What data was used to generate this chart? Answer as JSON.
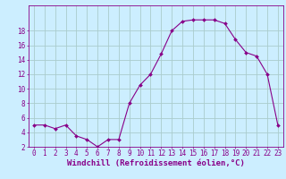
{
  "x": [
    0,
    1,
    2,
    3,
    4,
    5,
    6,
    7,
    8,
    9,
    10,
    11,
    12,
    13,
    14,
    15,
    16,
    17,
    18,
    19,
    20,
    21,
    22,
    23
  ],
  "y": [
    5,
    5,
    4.5,
    5,
    3.5,
    3,
    2,
    3,
    3,
    8,
    10.5,
    12,
    14.8,
    18,
    19.3,
    19.5,
    19.5,
    19.5,
    19,
    16.8,
    15,
    14.5,
    12,
    5
  ],
  "line_color": "#880088",
  "marker": "D",
  "marker_size": 2.0,
  "bg_color": "#cceeff",
  "grid_color": "#aacccc",
  "ylim": [
    2,
    20
  ],
  "xlim": [
    -0.5,
    23.5
  ],
  "yticks": [
    2,
    4,
    6,
    8,
    10,
    12,
    14,
    16,
    18
  ],
  "xticks": [
    0,
    1,
    2,
    3,
    4,
    5,
    6,
    7,
    8,
    9,
    10,
    11,
    12,
    13,
    14,
    15,
    16,
    17,
    18,
    19,
    20,
    21,
    22,
    23
  ],
  "tick_label_color": "#880088",
  "tick_label_size": 5.5,
  "xlabel": "Windchill (Refroidissement éolien,°C)",
  "xlabel_fontsize": 6.5,
  "xlabel_color": "#880088",
  "axis_color": "#880088",
  "spine_color": "#880088"
}
